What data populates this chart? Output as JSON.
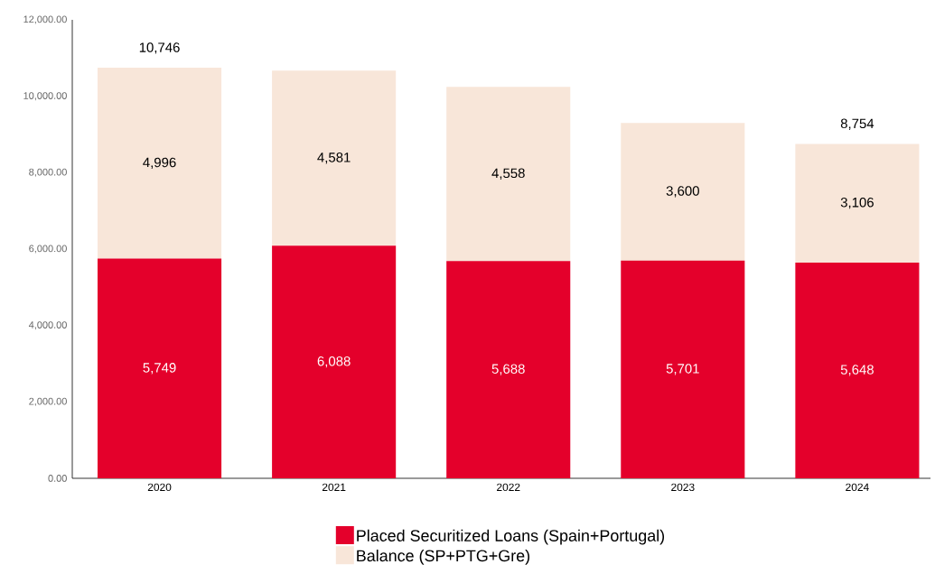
{
  "chart_data": {
    "type": "bar",
    "stacked": true,
    "categories": [
      "2020",
      "2021",
      "2022",
      "2023",
      "2024"
    ],
    "series": [
      {
        "name": "Placed Securitized Loans (Spain+Portugal)",
        "color": "#e4002b",
        "values": [
          5749,
          6088,
          5688,
          5701,
          5648
        ],
        "value_labels": [
          "5,749",
          "6,088",
          "5,688",
          "5,701",
          "5,648"
        ]
      },
      {
        "name": "Balance (SP+PTG+Gre)",
        "color": "#f8e6d9",
        "values": [
          4996,
          4581,
          4558,
          3600,
          3106
        ],
        "value_labels": [
          "4,996",
          "4,581",
          "4,558",
          "3,600",
          "3,106"
        ]
      }
    ],
    "totals": [
      "10,746",
      null,
      null,
      null,
      "8,754"
    ],
    "ylim": [
      0,
      12000
    ],
    "yticks": [
      {
        "value": 0,
        "label": "0.00"
      },
      {
        "value": 2000,
        "label": "2,000.00"
      },
      {
        "value": 4000,
        "label": "4,000.00"
      },
      {
        "value": 6000,
        "label": "6,000.00"
      },
      {
        "value": 8000,
        "label": "8,000.00"
      },
      {
        "value": 10000,
        "label": "10,000.00"
      },
      {
        "value": 12000,
        "label": "12,000.00"
      }
    ],
    "legend": "bottom"
  }
}
